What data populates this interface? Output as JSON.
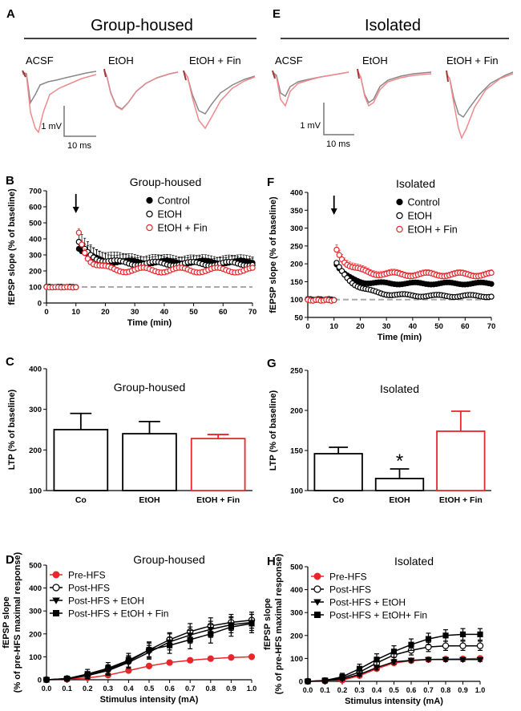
{
  "colors": {
    "red": "#e8262b",
    "grey": "#888888",
    "pink": "#f08a8e",
    "dark_red": "#a03838",
    "dash": "#a9a9a9",
    "black": "#000000"
  },
  "panels": {
    "A": {
      "letter": "A",
      "header": "Group-housed",
      "traces": [
        {
          "label": "ACSF"
        },
        {
          "label": "EtOH"
        },
        {
          "label": "EtOH + Fin"
        }
      ],
      "scale_v": "1 mV",
      "scale_t": "10 ms"
    },
    "E": {
      "letter": "E",
      "header": "Isolated",
      "traces": [
        {
          "label": "ACSF"
        },
        {
          "label": "EtOH"
        },
        {
          "label": "EtOH + Fin"
        }
      ],
      "scale_v": "1 mV",
      "scale_t": "10 ms"
    }
  },
  "chart_data": [
    {
      "id": "B",
      "letter": "B",
      "type": "scatter",
      "title": "Group-housed",
      "xlabel": "Time (min)",
      "ylabel": "fEPSP slope (% of baseline)",
      "xlim": [
        0,
        70
      ],
      "ylim": [
        0,
        700
      ],
      "xticks": [
        0,
        10,
        20,
        30,
        40,
        50,
        60,
        70
      ],
      "yticks": [
        0,
        100,
        200,
        300,
        400,
        500,
        600,
        700
      ],
      "baseline": 100,
      "arrow_x": 10,
      "series": [
        {
          "name": "Control",
          "style": "filled",
          "color": "#000000",
          "baseline": 100,
          "peak": 345,
          "plateau": 255,
          "tau": 4,
          "wobble": 10,
          "err": 60
        },
        {
          "name": "EtOH",
          "style": "open",
          "color": "#000000",
          "baseline": 100,
          "peak": 370,
          "plateau": 245,
          "tau": 5,
          "wobble": 12,
          "err": 70
        },
        {
          "name": "EtOH + Fin",
          "style": "open",
          "color": "#e8262b",
          "baseline": 98,
          "peak": 440,
          "plateau": 205,
          "tau": 3,
          "wobble": 15,
          "err": 25
        }
      ]
    },
    {
      "id": "F",
      "letter": "F",
      "type": "scatter",
      "title": "Isolated",
      "xlabel": "Time (min)",
      "ylabel": "fEPSP slope (% of baseline)",
      "xlim": [
        0,
        70
      ],
      "ylim": [
        50,
        400
      ],
      "xticks": [
        0,
        10,
        20,
        30,
        40,
        50,
        60,
        70
      ],
      "yticks": [
        50,
        100,
        150,
        200,
        250,
        300,
        350,
        400
      ],
      "baseline": 100,
      "arrow_x": 10,
      "series": [
        {
          "name": "Control",
          "style": "filled",
          "color": "#000000",
          "baseline": 100,
          "peak": 200,
          "plateau": 145,
          "tau": 4,
          "wobble": 3,
          "err": 6
        },
        {
          "name": "EtOH",
          "style": "open",
          "color": "#000000",
          "baseline": 100,
          "peak": 200,
          "plateau": 110,
          "tau": 7,
          "wobble": 3,
          "err": 5
        },
        {
          "name": "EtOH + Fin",
          "style": "open",
          "color": "#e8262b",
          "baseline": 98,
          "peak": 240,
          "plateau": 170,
          "tau": 5,
          "wobble": 5,
          "err": 14
        }
      ]
    },
    {
      "id": "C",
      "letter": "C",
      "type": "bar",
      "title": "Group-housed",
      "ylabel": "LTP (% of baseline)",
      "ylim": [
        100,
        400
      ],
      "yticks": [
        100,
        200,
        300,
        400
      ],
      "categories": [
        "Co",
        "EtOH",
        "EtOH + Fin"
      ],
      "values": [
        250,
        240,
        228
      ],
      "errors": [
        40,
        30,
        10
      ],
      "bar_colors": [
        "#000000",
        "#000000",
        "#e8262b"
      ],
      "stars": [
        "",
        "",
        ""
      ]
    },
    {
      "id": "G",
      "letter": "G",
      "type": "bar",
      "title": "Isolated",
      "ylabel": "LTP (% of baseline)",
      "ylim": [
        100,
        250
      ],
      "yticks": [
        100,
        150,
        200,
        250
      ],
      "categories": [
        "Co",
        "EtOH",
        "EtOH + Fin"
      ],
      "values": [
        146,
        115,
        174
      ],
      "errors": [
        8,
        12,
        25
      ],
      "bar_colors": [
        "#000000",
        "#000000",
        "#e8262b"
      ],
      "stars": [
        "",
        "*",
        ""
      ]
    },
    {
      "id": "D",
      "letter": "D",
      "type": "line",
      "title": "Group-housed",
      "xlabel": "Stimulus intensity (mA)",
      "ylabel": "fEPSP slope",
      "ylabel2": "(% of pre-HFS maximal response)",
      "xlim": [
        0,
        1
      ],
      "ylim": [
        0,
        500
      ],
      "xticks": [
        0.0,
        0.1,
        0.2,
        0.3,
        0.4,
        0.5,
        0.6,
        0.7,
        0.8,
        0.9,
        1.0
      ],
      "yticks": [
        0,
        100,
        200,
        300,
        400,
        500
      ],
      "x": [
        0.0,
        0.1,
        0.2,
        0.3,
        0.4,
        0.5,
        0.6,
        0.7,
        0.8,
        0.9,
        1.0
      ],
      "series": [
        {
          "name": "Pre-HFS",
          "marker": "circle-filled",
          "color": "#e8262b",
          "values": [
            0,
            2,
            8,
            20,
            40,
            60,
            75,
            85,
            92,
            97,
            100
          ],
          "err": [
            0,
            2,
            3,
            4,
            5,
            6,
            6,
            6,
            6,
            6,
            6
          ]
        },
        {
          "name": "Post-HFS",
          "marker": "circle-open",
          "color": "#000000",
          "values": [
            0,
            5,
            20,
            45,
            80,
            130,
            175,
            210,
            235,
            250,
            260
          ],
          "err": [
            0,
            5,
            15,
            20,
            25,
            30,
            30,
            35,
            35,
            35,
            35
          ]
        },
        {
          "name": "Post-HFS + EtOH",
          "marker": "triangle-down",
          "color": "#000000",
          "values": [
            0,
            3,
            18,
            40,
            75,
            120,
            165,
            195,
            220,
            240,
            250
          ],
          "err": [
            0,
            5,
            15,
            20,
            25,
            30,
            35,
            35,
            35,
            35,
            35
          ]
        },
        {
          "name": "Post-HFS + EtOH + Fin",
          "marker": "square",
          "color": "#000000",
          "values": [
            0,
            5,
            25,
            50,
            85,
            130,
            150,
            175,
            200,
            230,
            245
          ],
          "err": [
            0,
            8,
            20,
            25,
            30,
            35,
            35,
            40,
            40,
            40,
            40
          ]
        }
      ]
    },
    {
      "id": "H",
      "letter": "H",
      "type": "line",
      "title": "Isolated",
      "xlabel": "Stimulus intensity (mA)",
      "ylabel": "fEPSP slope",
      "ylabel2": "(% of pre-HFS maximal response)",
      "xlim": [
        0,
        1
      ],
      "ylim": [
        0,
        500
      ],
      "xticks": [
        0.0,
        0.1,
        0.2,
        0.3,
        0.4,
        0.5,
        0.6,
        0.7,
        0.8,
        0.9,
        1.0
      ],
      "yticks": [
        0,
        100,
        200,
        300,
        400,
        500
      ],
      "x": [
        0.0,
        0.1,
        0.2,
        0.3,
        0.4,
        0.5,
        0.6,
        0.7,
        0.8,
        0.9,
        1.0
      ],
      "series": [
        {
          "name": "Pre-HFS",
          "marker": "circle-filled",
          "color": "#e8262b",
          "values": [
            0,
            1,
            5,
            25,
            55,
            80,
            90,
            95,
            97,
            98,
            100
          ],
          "err": [
            0,
            2,
            3,
            4,
            5,
            5,
            5,
            5,
            5,
            5,
            5
          ]
        },
        {
          "name": "Post-HFS",
          "marker": "circle-open",
          "color": "#000000",
          "values": [
            0,
            3,
            15,
            40,
            80,
            115,
            135,
            150,
            155,
            155,
            155
          ],
          "err": [
            0,
            5,
            10,
            15,
            20,
            20,
            20,
            20,
            20,
            20,
            20
          ]
        },
        {
          "name": "Post-HFS + EtOH",
          "marker": "triangle-down",
          "color": "#000000",
          "values": [
            0,
            2,
            10,
            30,
            60,
            85,
            92,
            95,
            95,
            95,
            95
          ],
          "err": [
            0,
            3,
            5,
            8,
            10,
            10,
            8,
            8,
            8,
            8,
            8
          ]
        },
        {
          "name": "Post-HFS + EtOH+ Fin",
          "marker": "square",
          "color": "#000000",
          "values": [
            0,
            4,
            20,
            55,
            95,
            130,
            160,
            185,
            200,
            205,
            205
          ],
          "err": [
            0,
            5,
            15,
            20,
            25,
            25,
            25,
            25,
            25,
            25,
            25
          ]
        }
      ]
    }
  ]
}
